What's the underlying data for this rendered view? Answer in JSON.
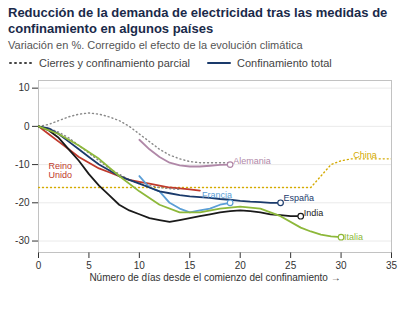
{
  "chart_data": {
    "type": "line",
    "title": "Reducción de la demanda de electricidad tras las medidas de confinamiento en algunos países",
    "subtitle": "Variación en %. Corregido el efecto de la evolución climática",
    "xlabel": "Número de días desde el comienzo del confinamiento",
    "xlim": [
      0,
      35
    ],
    "ylim": [
      -33,
      12
    ],
    "xticks": [
      0,
      5,
      10,
      15,
      20,
      25,
      30,
      35
    ],
    "yticks": [
      10,
      0,
      -10,
      -20,
      -30
    ],
    "grid": true,
    "legend": "top",
    "legend_entries": [
      {
        "label": "Cierres y confinamiento parcial",
        "line_style": "dotted",
        "color": "#444444"
      },
      {
        "label": "Confinamiento total",
        "line_style": "solid",
        "color": "#1a3a6b"
      }
    ],
    "series": [
      {
        "name": "China",
        "color": "#d4aa00",
        "line_style": "dotted",
        "x": [
          0,
          27,
          28,
          29,
          30,
          31,
          35
        ],
        "values": [
          -16,
          -16,
          -13,
          -10,
          -9,
          -8.5,
          -8.5
        ]
      },
      {
        "name": "Reino Unido",
        "color": "#c0392b",
        "line_style": "solid",
        "x": [
          0,
          1,
          2,
          3,
          4,
          5,
          6,
          7,
          8,
          9,
          10,
          11,
          12,
          13,
          14,
          15,
          16
        ],
        "values": [
          0,
          -2,
          -4,
          -6,
          -8,
          -9.5,
          -11,
          -12,
          -13,
          -14,
          -14.5,
          -15,
          -15.5,
          -16,
          -16.2,
          -16.5,
          -16.8
        ]
      },
      {
        "color": "#888888",
        "line_style": "dotted",
        "x": [
          0,
          1,
          2,
          3,
          4,
          5,
          6,
          7,
          8,
          9,
          10,
          11,
          12,
          13,
          14,
          15,
          16,
          17,
          18,
          19
        ],
        "values": [
          0,
          0.5,
          1.5,
          2.5,
          3.2,
          3.5,
          3.2,
          2.5,
          1.5,
          0,
          -2,
          -4,
          -6,
          -7.5,
          -8.5,
          -9.2,
          -9.5,
          -9.5,
          -9.5,
          -9.5
        ]
      },
      {
        "name": "Alemania",
        "color": "#b088a8",
        "line_style": "solid",
        "marker": "circle",
        "x": [
          10,
          11,
          12,
          13,
          14,
          15,
          16,
          17,
          18,
          19
        ],
        "values": [
          -3.5,
          -6,
          -8,
          -9.5,
          -10.2,
          -10.5,
          -10.5,
          -10.3,
          -10.1,
          -10.0
        ]
      },
      {
        "color": "#888888",
        "line_style": "dotted",
        "x": [
          0,
          1,
          2,
          3,
          4,
          5,
          6,
          7,
          8,
          9,
          10,
          11,
          12,
          13,
          14
        ],
        "values": [
          0,
          -0.5,
          -1.5,
          -3,
          -5,
          -7,
          -9,
          -11,
          -12.5,
          -14,
          -15,
          -15.5,
          -16,
          -16.3,
          -16.5
        ]
      },
      {
        "name": "Francia",
        "color": "#5b9ed6",
        "line_style": "solid",
        "marker": "circle",
        "x": [
          10,
          11,
          12,
          13,
          14,
          15,
          16,
          17,
          18,
          19
        ],
        "values": [
          -13,
          -16,
          -17,
          -20,
          -21.5,
          -22.5,
          -22,
          -21.5,
          -20.5,
          -20.0
        ]
      },
      {
        "name": "España",
        "color": "#1a3a6b",
        "line_style": "solid",
        "marker": "circle",
        "x": [
          0,
          1,
          2,
          3,
          4,
          5,
          6,
          7,
          8,
          9,
          10,
          11,
          12,
          13,
          14,
          15,
          16,
          17,
          18,
          19,
          20,
          21,
          22,
          23,
          24
        ],
        "values": [
          0,
          -0.5,
          -2,
          -4,
          -6,
          -8,
          -10,
          -11.5,
          -13,
          -14,
          -15,
          -16,
          -17,
          -17.5,
          -18,
          -18.3,
          -18.5,
          -18.7,
          -19,
          -19.2,
          -19.5,
          -19.7,
          -19.8,
          -20,
          -20
        ]
      },
      {
        "name": "India",
        "color": "#1a1a1a",
        "line_style": "solid",
        "marker": "circle",
        "x": [
          0,
          1,
          2,
          3,
          4,
          5,
          6,
          7,
          8,
          9,
          10,
          11,
          12,
          13,
          14,
          15,
          16,
          17,
          18,
          19,
          20,
          21,
          22,
          23,
          24,
          25,
          26
        ],
        "values": [
          0,
          -1,
          -3,
          -6,
          -9,
          -12.5,
          -15.5,
          -18,
          -20.5,
          -22,
          -23,
          -24,
          -24.5,
          -25,
          -24.5,
          -24,
          -23.5,
          -23,
          -22.5,
          -22.2,
          -22.0,
          -22.2,
          -22.5,
          -23,
          -23.2,
          -23.5,
          -23.5
        ]
      },
      {
        "name": "Italia",
        "color": "#8db83a",
        "line_style": "solid",
        "marker": "circle",
        "x": [
          0,
          2,
          4,
          6,
          8,
          10,
          12,
          14,
          16,
          18,
          20,
          22,
          24,
          26,
          27,
          28,
          29,
          30
        ],
        "values": [
          0,
          -2,
          -5,
          -8.5,
          -13,
          -17,
          -20.5,
          -22.5,
          -22.5,
          -21.5,
          -21,
          -21.5,
          -23.5,
          -26.5,
          -27.5,
          -28.3,
          -28.8,
          -29
        ]
      }
    ],
    "annotations": [
      {
        "text": "China",
        "x": 31.2,
        "y": -7.5,
        "color": "#d4aa00"
      },
      {
        "text": "Reino\nUnido",
        "x": 1.0,
        "y": -11.5,
        "color": "#c0392b"
      },
      {
        "text": "Alemania",
        "x": 19.3,
        "y": -9.2,
        "color": "#b088a8"
      },
      {
        "text": "Francia",
        "x": 16.2,
        "y": -18.0,
        "color": "#5b9ed6"
      },
      {
        "text": "España",
        "x": 24.3,
        "y": -18.8,
        "color": "#1a3a6b"
      },
      {
        "text": "India",
        "x": 26.3,
        "y": -22.8,
        "color": "#1a1a1a"
      },
      {
        "text": "Italia",
        "x": 30.3,
        "y": -29,
        "color": "#8db83a"
      }
    ]
  }
}
